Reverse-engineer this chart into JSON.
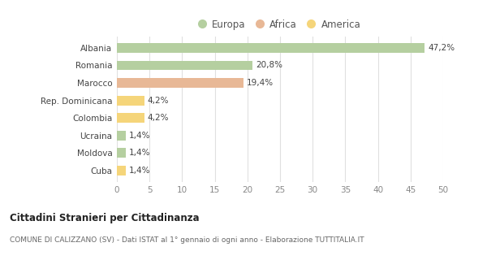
{
  "categories": [
    "Albania",
    "Romania",
    "Marocco",
    "Rep. Dominicana",
    "Colombia",
    "Ucraina",
    "Moldova",
    "Cuba"
  ],
  "values": [
    47.2,
    20.8,
    19.4,
    4.2,
    4.2,
    1.4,
    1.4,
    1.4
  ],
  "labels": [
    "47,2%",
    "20,8%",
    "19,4%",
    "4,2%",
    "4,2%",
    "1,4%",
    "1,4%",
    "1,4%"
  ],
  "colors": [
    "#b5cfa0",
    "#b5cfa0",
    "#e8b896",
    "#f5d57a",
    "#f5d57a",
    "#b5cfa0",
    "#b5cfa0",
    "#f5d57a"
  ],
  "legend": [
    {
      "label": "Europa",
      "color": "#b5cfa0"
    },
    {
      "label": "Africa",
      "color": "#e8b896"
    },
    {
      "label": "America",
      "color": "#f5d57a"
    }
  ],
  "xlim": [
    0,
    50
  ],
  "xticks": [
    0,
    5,
    10,
    15,
    20,
    25,
    30,
    35,
    40,
    45,
    50
  ],
  "title": "Cittadini Stranieri per Cittadinanza",
  "subtitle": "COMUNE DI CALIZZANO (SV) - Dati ISTAT al 1° gennaio di ogni anno - Elaborazione TUTTITALIA.IT",
  "background_color": "#ffffff",
  "grid_color": "#e0e0e0",
  "bar_height": 0.55
}
